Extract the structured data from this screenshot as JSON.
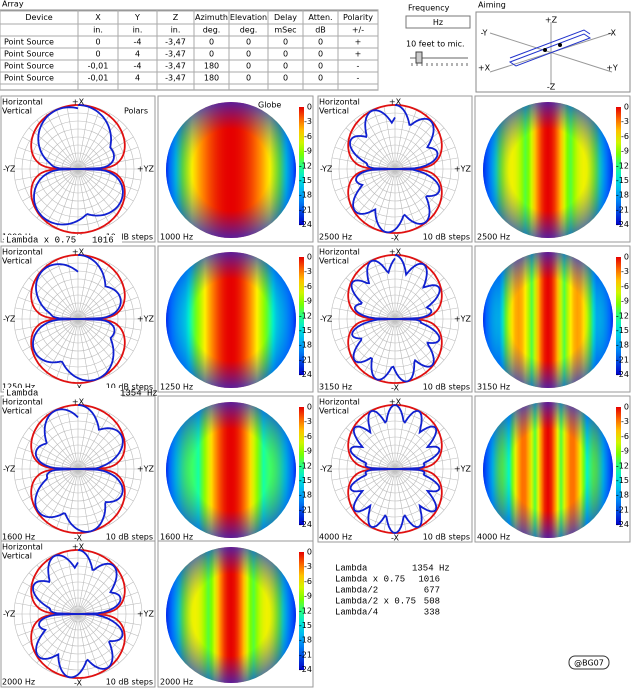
{
  "array": {
    "title": "Array",
    "headers": [
      "Device",
      "X",
      "Y",
      "Z",
      "Azimuth",
      "Elevation",
      "Delay",
      "Atten.",
      "Polarity"
    ],
    "units": [
      "",
      "in.",
      "in.",
      "in.",
      "deg.",
      "deg.",
      "mSec",
      "dB",
      "+/-"
    ],
    "rows": [
      [
        "Point Source",
        "0",
        "-4",
        "-3,47",
        "0",
        "0",
        "0",
        "0",
        "+"
      ],
      [
        "Point Source",
        "0",
        "4",
        "-3,47",
        "0",
        "0",
        "0",
        "0",
        "+"
      ],
      [
        "Point Source",
        "-0,01",
        "-4",
        "-3,47",
        "180",
        "0",
        "0",
        "0",
        "-"
      ],
      [
        "Point Source",
        "-0,01",
        "4",
        "-3,47",
        "180",
        "0",
        "0",
        "0",
        "-"
      ]
    ]
  },
  "frequency": {
    "title": "Frequency",
    "unit": "Hz",
    "distance": "10 feet to mic."
  },
  "aiming": {
    "title": "Aiming",
    "axes": [
      "+Z",
      "-Z",
      "-Y",
      "-X",
      "+X",
      "+Y"
    ]
  },
  "polar_labels": {
    "horizontal": "Horizontal",
    "vertical": "Vertical",
    "steps": "10 dB steps",
    "top": "+X",
    "bottom": "-X",
    "left": "-YZ",
    "right": "+YZ",
    "polars": "Polars"
  },
  "globe_labels": {
    "globe": "Globe",
    "scale": [
      "0",
      "-3",
      "-6",
      "-9",
      "-12",
      "-15",
      "-18",
      "-21",
      "-24"
    ]
  },
  "panels": [
    {
      "freq": "1000 Hz"
    },
    {
      "freq": "1250 Hz"
    },
    {
      "freq": "1600 Hz"
    },
    {
      "freq": "2000 Hz"
    },
    {
      "freq": "2500 Hz"
    },
    {
      "freq": "3150 Hz"
    },
    {
      "freq": "4000 Hz"
    }
  ],
  "annotations": [
    {
      "name": "Lambda x 0.75",
      "value": "1016"
    },
    {
      "name": "Lambda",
      "value": "1354 Hz"
    }
  ],
  "lambda_table": [
    [
      "Lambda",
      "1354 Hz"
    ],
    [
      "Lambda x 0.75",
      "1016"
    ],
    [
      "Lambda/2",
      "677"
    ],
    [
      "Lambda/2 x 0.75",
      "508"
    ],
    [
      "Lambda/4",
      "338"
    ]
  ],
  "footer": "@BG07"
}
